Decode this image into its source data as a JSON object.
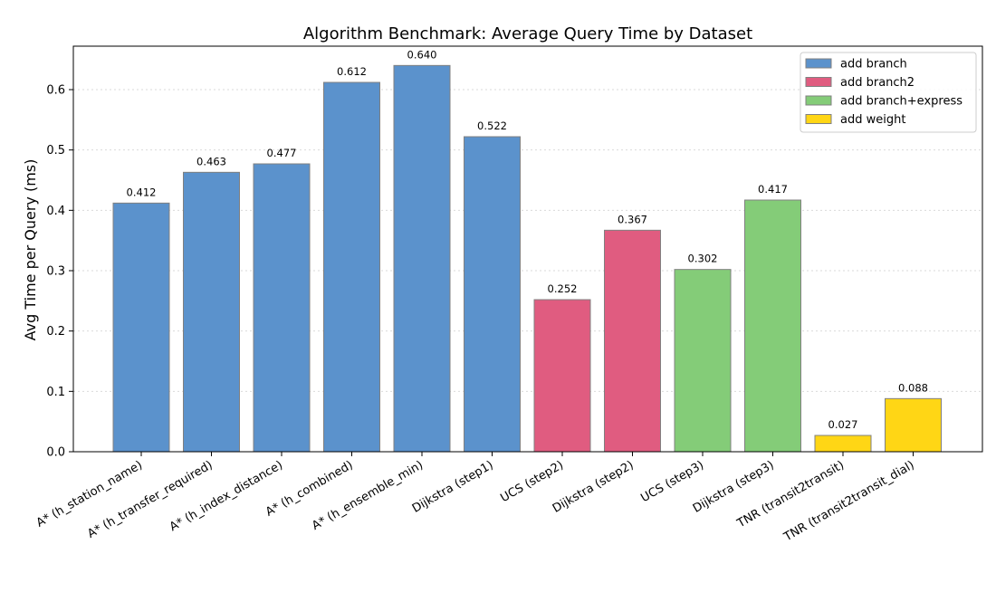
{
  "chart_data": {
    "type": "bar",
    "title": "Algorithm Benchmark: Average Query Time by Dataset",
    "xlabel": "",
    "ylabel": "Avg Time per Query (ms)",
    "ylim": [
      0,
      0.672
    ],
    "yticks": [
      "0.0",
      "0.1",
      "0.2",
      "0.3",
      "0.4",
      "0.5",
      "0.6"
    ],
    "ytick_values": [
      0.0,
      0.1,
      0.2,
      0.3,
      0.4,
      0.5,
      0.6
    ],
    "grid": "y-dotted",
    "legend_position": "top-right",
    "categories": [
      "A* (h_station_name)",
      "A* (h_transfer_required)",
      "A* (h_index_distance)",
      "A* (h_combined)",
      "A* (h_ensemble_min)",
      "Dijkstra (step1)",
      "UCS (step2)",
      "Dijkstra (step2)",
      "UCS (step3)",
      "Dijkstra (step3)",
      "TNR (transit2transit)",
      "TNR (transit2transit_dial)"
    ],
    "values": [
      0.412,
      0.463,
      0.477,
      0.612,
      0.64,
      0.522,
      0.252,
      0.367,
      0.302,
      0.417,
      0.027,
      0.088
    ],
    "value_labels": [
      "0.412",
      "0.463",
      "0.477",
      "0.612",
      "0.640",
      "0.522",
      "0.252",
      "0.367",
      "0.302",
      "0.417",
      "0.027",
      "0.088"
    ],
    "groups": [
      0,
      0,
      0,
      0,
      0,
      0,
      1,
      1,
      2,
      2,
      3,
      3
    ],
    "legend": [
      {
        "name": "add branch",
        "color": "#5b92cc"
      },
      {
        "name": "add branch2",
        "color": "#e05c80"
      },
      {
        "name": "add branch+express",
        "color": "#84cc78"
      },
      {
        "name": "add weight",
        "color": "#ffd615"
      }
    ],
    "bar_edge_color": "#808080"
  }
}
